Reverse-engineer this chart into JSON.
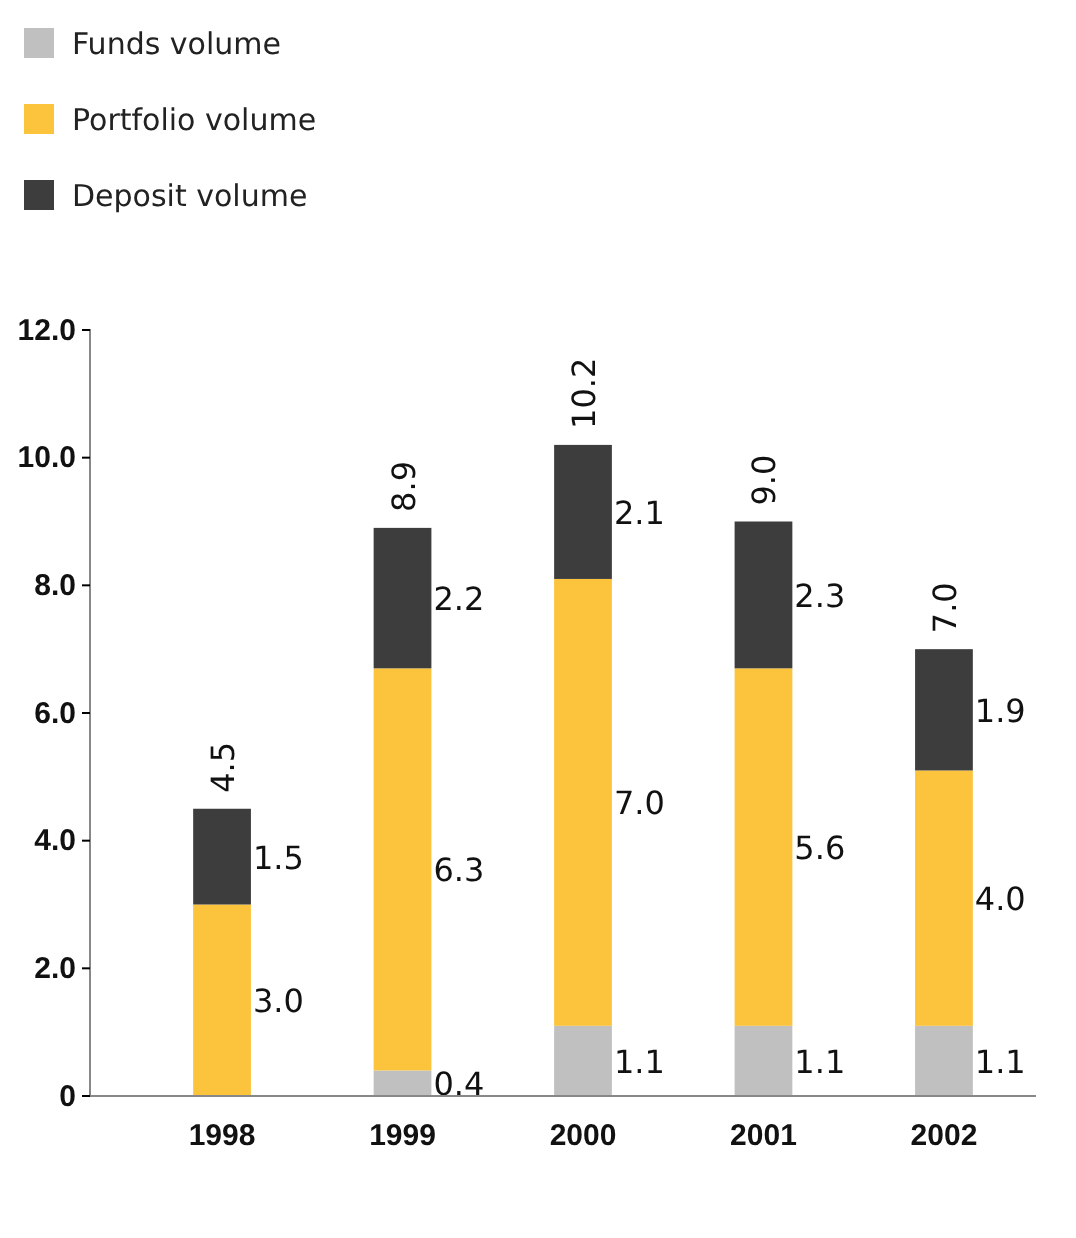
{
  "chart_data": {
    "type": "bar",
    "stacked": true,
    "legend": "top left",
    "categories": [
      "1998",
      "1999",
      "2000",
      "2001",
      "2002"
    ],
    "ylim": [
      0,
      12
    ],
    "yticks": [
      0,
      {
        "value": 2,
        "label": "2.0"
      },
      {
        "value": 4,
        "label": "4.0"
      },
      {
        "value": 6,
        "label": "6.0"
      },
      {
        "value": 8,
        "label": "8.0"
      },
      {
        "value": 10,
        "label": "10.0"
      },
      {
        "value": 12,
        "label": "12.0"
      }
    ],
    "series": [
      {
        "name": "Funds volume",
        "color": "#c0c0c0",
        "values": [
          null,
          0.4,
          1.1,
          1.1,
          1.1
        ],
        "value_labels": [
          null,
          "0.4",
          "1.1",
          "1.1",
          "1.1"
        ]
      },
      {
        "name": "Portfolio volume",
        "color": "#fcc33c",
        "values": [
          3.0,
          6.3,
          7.0,
          5.6,
          4.0
        ],
        "value_labels": [
          "3.0",
          "6.3",
          "7.0",
          "5.6",
          "4.0"
        ]
      },
      {
        "name": "Deposit volume",
        "color": "#3d3d3d",
        "values": [
          1.5,
          2.2,
          2.1,
          2.3,
          1.9
        ],
        "value_labels": [
          "1.5",
          "2.2",
          "2.1",
          "2.3",
          "1.9"
        ]
      }
    ],
    "totals": [
      "4.5",
      "8.9",
      "10.2",
      "9.0",
      "7.0"
    ]
  }
}
